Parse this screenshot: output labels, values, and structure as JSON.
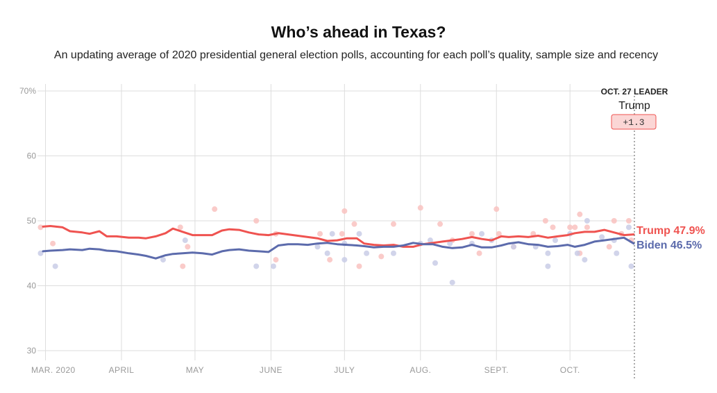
{
  "header": {
    "title": "Who’s ahead in Texas?",
    "subtitle": "An updating average of 2020 presidential general election polls, accounting for each poll’s quality, sample size and recency"
  },
  "leader": {
    "heading": "OCT. 27 LEADER",
    "name": "Trump",
    "margin": "+1.3"
  },
  "colors": {
    "trump": "#ef5350",
    "biden": "#5c6bac",
    "trump_poll": "#f9c2c0",
    "biden_poll": "#c9cde6",
    "leader_badge_bg": "#fbd6d5",
    "grid": "#dddddd"
  },
  "chart_data": {
    "type": "line",
    "title": "Who’s ahead in Texas?",
    "ylim": [
      30,
      70
    ],
    "y_ticks": [
      {
        "value": 70,
        "label": "70%"
      },
      {
        "value": 60,
        "label": "60"
      },
      {
        "value": 50,
        "label": "50"
      },
      {
        "value": 40,
        "label": "40"
      },
      {
        "value": 30,
        "label": "30"
      }
    ],
    "x_range": [
      "2020-02-29",
      "2020-10-27"
    ],
    "x_ticks": [
      {
        "date": "2020-03-01",
        "label": "MAR. 2020"
      },
      {
        "date": "2020-04-01",
        "label": "APRIL"
      },
      {
        "date": "2020-05-01",
        "label": "MAY"
      },
      {
        "date": "2020-06-01",
        "label": "JUNE"
      },
      {
        "date": "2020-07-01",
        "label": "JULY"
      },
      {
        "date": "2020-08-01",
        "label": "AUG."
      },
      {
        "date": "2020-09-01",
        "label": "SEPT."
      },
      {
        "date": "2020-10-01",
        "label": "OCT."
      }
    ],
    "grid": true,
    "series": [
      {
        "name": "Trump",
        "end_label": "Trump 47.9%",
        "points": [
          [
            "2020-02-29",
            49.1
          ],
          [
            "2020-03-03",
            49.2
          ],
          [
            "2020-03-08",
            49.0
          ],
          [
            "2020-03-11",
            48.4
          ],
          [
            "2020-03-16",
            48.2
          ],
          [
            "2020-03-19",
            48.0
          ],
          [
            "2020-03-23",
            48.4
          ],
          [
            "2020-03-26",
            47.6
          ],
          [
            "2020-03-30",
            47.6
          ],
          [
            "2020-04-04",
            47.4
          ],
          [
            "2020-04-08",
            47.4
          ],
          [
            "2020-04-11",
            47.3
          ],
          [
            "2020-04-15",
            47.6
          ],
          [
            "2020-04-19",
            48.1
          ],
          [
            "2020-04-22",
            48.8
          ],
          [
            "2020-04-26",
            48.3
          ],
          [
            "2020-04-30",
            47.8
          ],
          [
            "2020-05-04",
            47.8
          ],
          [
            "2020-05-08",
            47.8
          ],
          [
            "2020-05-12",
            48.5
          ],
          [
            "2020-05-15",
            48.7
          ],
          [
            "2020-05-19",
            48.6
          ],
          [
            "2020-05-23",
            48.2
          ],
          [
            "2020-05-27",
            47.9
          ],
          [
            "2020-05-31",
            47.8
          ],
          [
            "2020-06-04",
            48.1
          ],
          [
            "2020-06-08",
            47.9
          ],
          [
            "2020-06-12",
            47.7
          ],
          [
            "2020-06-16",
            47.5
          ],
          [
            "2020-06-20",
            47.3
          ],
          [
            "2020-06-24",
            46.9
          ],
          [
            "2020-06-28",
            47.0
          ],
          [
            "2020-07-02",
            47.3
          ],
          [
            "2020-07-06",
            47.3
          ],
          [
            "2020-07-09",
            46.5
          ],
          [
            "2020-07-13",
            46.3
          ],
          [
            "2020-07-17",
            46.2
          ],
          [
            "2020-07-21",
            46.3
          ],
          [
            "2020-07-25",
            46.0
          ],
          [
            "2020-07-29",
            46.0
          ],
          [
            "2020-08-02",
            46.4
          ],
          [
            "2020-08-06",
            46.6
          ],
          [
            "2020-08-10",
            46.8
          ],
          [
            "2020-08-14",
            47.0
          ],
          [
            "2020-08-18",
            47.2
          ],
          [
            "2020-08-22",
            47.5
          ],
          [
            "2020-08-26",
            47.2
          ],
          [
            "2020-08-30",
            47.0
          ],
          [
            "2020-09-03",
            47.6
          ],
          [
            "2020-09-06",
            47.5
          ],
          [
            "2020-09-10",
            47.6
          ],
          [
            "2020-09-14",
            47.5
          ],
          [
            "2020-09-18",
            47.7
          ],
          [
            "2020-09-22",
            47.4
          ],
          [
            "2020-09-26",
            47.6
          ],
          [
            "2020-09-30",
            47.8
          ],
          [
            "2020-10-03",
            48.1
          ],
          [
            "2020-10-07",
            48.3
          ],
          [
            "2020-10-11",
            48.3
          ],
          [
            "2020-10-15",
            48.6
          ],
          [
            "2020-10-19",
            48.2
          ],
          [
            "2020-10-23",
            47.8
          ],
          [
            "2020-10-27",
            47.9
          ]
        ]
      },
      {
        "name": "Biden",
        "end_label": "Biden 46.5%",
        "points": [
          [
            "2020-02-29",
            45.3
          ],
          [
            "2020-03-03",
            45.4
          ],
          [
            "2020-03-08",
            45.5
          ],
          [
            "2020-03-11",
            45.6
          ],
          [
            "2020-03-16",
            45.5
          ],
          [
            "2020-03-19",
            45.7
          ],
          [
            "2020-03-23",
            45.6
          ],
          [
            "2020-03-26",
            45.4
          ],
          [
            "2020-03-30",
            45.3
          ],
          [
            "2020-04-04",
            45.0
          ],
          [
            "2020-04-08",
            44.8
          ],
          [
            "2020-04-11",
            44.6
          ],
          [
            "2020-04-15",
            44.2
          ],
          [
            "2020-04-19",
            44.7
          ],
          [
            "2020-04-22",
            44.9
          ],
          [
            "2020-04-26",
            45.0
          ],
          [
            "2020-04-30",
            45.1
          ],
          [
            "2020-05-04",
            45.0
          ],
          [
            "2020-05-08",
            44.8
          ],
          [
            "2020-05-12",
            45.3
          ],
          [
            "2020-05-15",
            45.5
          ],
          [
            "2020-05-19",
            45.6
          ],
          [
            "2020-05-23",
            45.4
          ],
          [
            "2020-05-27",
            45.3
          ],
          [
            "2020-05-31",
            45.2
          ],
          [
            "2020-06-04",
            46.2
          ],
          [
            "2020-06-08",
            46.4
          ],
          [
            "2020-06-12",
            46.4
          ],
          [
            "2020-06-16",
            46.3
          ],
          [
            "2020-06-20",
            46.5
          ],
          [
            "2020-06-24",
            46.6
          ],
          [
            "2020-06-28",
            46.4
          ],
          [
            "2020-07-02",
            46.3
          ],
          [
            "2020-07-06",
            46.2
          ],
          [
            "2020-07-09",
            46.1
          ],
          [
            "2020-07-13",
            45.9
          ],
          [
            "2020-07-17",
            46.0
          ],
          [
            "2020-07-21",
            46.0
          ],
          [
            "2020-07-25",
            46.2
          ],
          [
            "2020-07-29",
            46.6
          ],
          [
            "2020-08-02",
            46.4
          ],
          [
            "2020-08-06",
            46.4
          ],
          [
            "2020-08-10",
            46.0
          ],
          [
            "2020-08-14",
            45.8
          ],
          [
            "2020-08-18",
            45.9
          ],
          [
            "2020-08-22",
            46.3
          ],
          [
            "2020-08-26",
            45.9
          ],
          [
            "2020-08-30",
            45.9
          ],
          [
            "2020-09-03",
            46.2
          ],
          [
            "2020-09-06",
            46.5
          ],
          [
            "2020-09-10",
            46.7
          ],
          [
            "2020-09-14",
            46.4
          ],
          [
            "2020-09-18",
            46.3
          ],
          [
            "2020-09-22",
            46.0
          ],
          [
            "2020-09-26",
            46.1
          ],
          [
            "2020-09-30",
            46.3
          ],
          [
            "2020-10-03",
            46.0
          ],
          [
            "2020-10-07",
            46.3
          ],
          [
            "2020-10-11",
            46.8
          ],
          [
            "2020-10-15",
            47.0
          ],
          [
            "2020-10-19",
            47.2
          ],
          [
            "2020-10-23",
            47.4
          ],
          [
            "2020-10-27",
            46.5
          ]
        ]
      }
    ],
    "polls": {
      "trump": [
        [
          "2020-02-28",
          49.0
        ],
        [
          "2020-03-04",
          46.5
        ],
        [
          "2020-04-26",
          43.0
        ],
        [
          "2020-04-28",
          46.0
        ],
        [
          "2020-04-25",
          49.0
        ],
        [
          "2020-05-09",
          51.8
        ],
        [
          "2020-05-26",
          50.0
        ],
        [
          "2020-06-03",
          48.0
        ],
        [
          "2020-06-03",
          44.0
        ],
        [
          "2020-06-21",
          48.0
        ],
        [
          "2020-06-25",
          44.0
        ],
        [
          "2020-06-30",
          48.0
        ],
        [
          "2020-07-01",
          51.5
        ],
        [
          "2020-07-05",
          49.5
        ],
        [
          "2020-07-07",
          43.0
        ],
        [
          "2020-07-16",
          44.5
        ],
        [
          "2020-07-21",
          49.5
        ],
        [
          "2020-08-01",
          52.0
        ],
        [
          "2020-08-09",
          49.5
        ],
        [
          "2020-08-14",
          47.0
        ],
        [
          "2020-08-22",
          48.0
        ],
        [
          "2020-08-25",
          45.0
        ],
        [
          "2020-09-01",
          51.8
        ],
        [
          "2020-09-02",
          48.0
        ],
        [
          "2020-09-08",
          46.0
        ],
        [
          "2020-09-16",
          48.0
        ],
        [
          "2020-09-21",
          50.0
        ],
        [
          "2020-09-24",
          49.0
        ],
        [
          "2020-10-01",
          49.0
        ],
        [
          "2020-10-03",
          49.0
        ],
        [
          "2020-10-05",
          51.0
        ],
        [
          "2020-10-08",
          49.0
        ],
        [
          "2020-10-05",
          45.0
        ],
        [
          "2020-10-17",
          46.0
        ],
        [
          "2020-10-19",
          50.0
        ],
        [
          "2020-10-25",
          50.0
        ],
        [
          "2020-10-22",
          48.0
        ],
        [
          "2020-10-26",
          47.0
        ]
      ],
      "biden": [
        [
          "2020-02-28",
          45.0
        ],
        [
          "2020-03-05",
          43.0
        ],
        [
          "2020-04-18",
          44.0
        ],
        [
          "2020-04-27",
          47.0
        ],
        [
          "2020-05-26",
          43.0
        ],
        [
          "2020-06-02",
          43.0
        ],
        [
          "2020-06-20",
          46.0
        ],
        [
          "2020-06-24",
          45.0
        ],
        [
          "2020-06-26",
          48.0
        ],
        [
          "2020-07-01",
          44.0
        ],
        [
          "2020-07-01",
          46.5
        ],
        [
          "2020-07-07",
          48.0
        ],
        [
          "2020-07-10",
          45.0
        ],
        [
          "2020-07-21",
          45.0
        ],
        [
          "2020-08-01",
          46.5
        ],
        [
          "2020-08-05",
          47.0
        ],
        [
          "2020-08-07",
          43.5
        ],
        [
          "2020-08-14",
          40.5
        ],
        [
          "2020-08-13",
          46.5
        ],
        [
          "2020-08-22",
          46.5
        ],
        [
          "2020-08-26",
          48.0
        ],
        [
          "2020-08-30",
          47.0
        ],
        [
          "2020-09-08",
          46.0
        ],
        [
          "2020-09-17",
          46.0
        ],
        [
          "2020-09-22",
          43.0
        ],
        [
          "2020-09-22",
          45.0
        ],
        [
          "2020-09-25",
          47.0
        ],
        [
          "2020-10-01",
          48.0
        ],
        [
          "2020-10-04",
          45.0
        ],
        [
          "2020-10-08",
          50.0
        ],
        [
          "2020-10-07",
          44.0
        ],
        [
          "2020-10-20",
          45.0
        ],
        [
          "2020-10-25",
          49.0
        ],
        [
          "2020-10-26",
          43.0
        ],
        [
          "2020-10-19",
          47.0
        ],
        [
          "2020-10-14",
          47.5
        ]
      ]
    }
  }
}
